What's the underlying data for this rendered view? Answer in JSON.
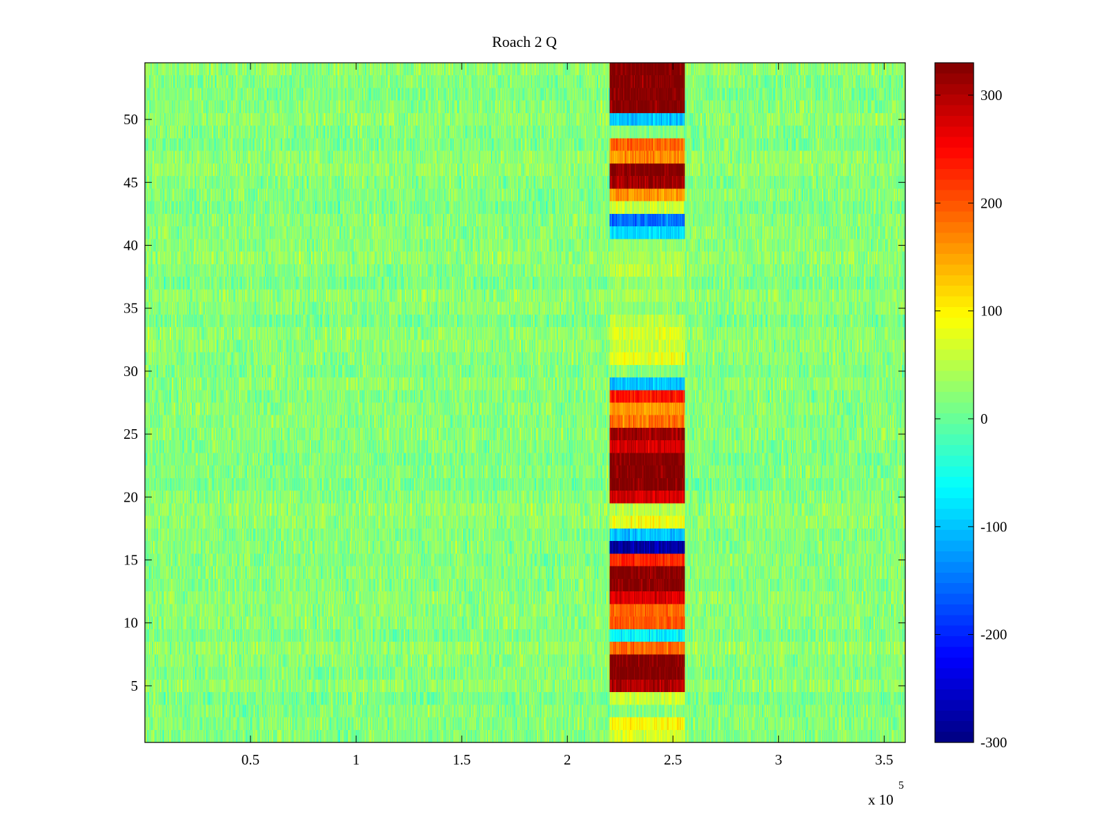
{
  "chart_data": {
    "type": "heatmap",
    "title": "Roach 2 Q",
    "xlabel": "",
    "ylabel": "",
    "x_exponent_label": "x 10",
    "x_exponent": "5",
    "xlim": [
      0,
      3.6
    ],
    "ylim": [
      0.5,
      54.5
    ],
    "x_ticks": [
      0.5,
      1,
      1.5,
      2,
      2.5,
      3,
      3.5
    ],
    "x_tick_labels": [
      "0.5",
      "1",
      "1.5",
      "2",
      "2.5",
      "3",
      "3.5"
    ],
    "y_ticks": [
      5,
      10,
      15,
      20,
      25,
      30,
      35,
      40,
      45,
      50
    ],
    "y_tick_labels": [
      "5",
      "10",
      "15",
      "20",
      "25",
      "30",
      "35",
      "40",
      "45",
      "50"
    ],
    "rows": 54,
    "colormap": "jet",
    "clim": [
      -300,
      330
    ],
    "colorbar_ticks": [
      -300,
      -200,
      -100,
      0,
      100,
      200,
      300
    ],
    "colorbar_tick_labels": [
      "-300",
      "-200",
      "-100",
      "0",
      "100",
      "200",
      "300"
    ],
    "background_level": 20,
    "background_noise": 30,
    "artifact_x": 0.915,
    "band": {
      "x_start": 2.2,
      "x_end": 2.555,
      "row_values": [
        {
          "row": 1,
          "value": 70
        },
        {
          "row": 2,
          "value": 95
        },
        {
          "row": 3,
          "value": 20
        },
        {
          "row": 4,
          "value": 60
        },
        {
          "row": 5,
          "value": 300
        },
        {
          "row": 6,
          "value": 330
        },
        {
          "row": 7,
          "value": 330
        },
        {
          "row": 8,
          "value": 190
        },
        {
          "row": 9,
          "value": -70
        },
        {
          "row": 10,
          "value": 200
        },
        {
          "row": 11,
          "value": 190
        },
        {
          "row": 12,
          "value": 270
        },
        {
          "row": 13,
          "value": 330
        },
        {
          "row": 14,
          "value": 330
        },
        {
          "row": 15,
          "value": 230
        },
        {
          "row": 16,
          "value": -280
        },
        {
          "row": 17,
          "value": -100
        },
        {
          "row": 18,
          "value": 90
        },
        {
          "row": 19,
          "value": 50
        },
        {
          "row": 20,
          "value": 280
        },
        {
          "row": 21,
          "value": 330
        },
        {
          "row": 22,
          "value": 330
        },
        {
          "row": 23,
          "value": 330
        },
        {
          "row": 24,
          "value": 280
        },
        {
          "row": 25,
          "value": 310
        },
        {
          "row": 26,
          "value": 180
        },
        {
          "row": 27,
          "value": 160
        },
        {
          "row": 28,
          "value": 240
        },
        {
          "row": 29,
          "value": -100
        },
        {
          "row": 30,
          "value": 20
        },
        {
          "row": 31,
          "value": 80
        },
        {
          "row": 32,
          "value": 60
        },
        {
          "row": 33,
          "value": 70
        },
        {
          "row": 34,
          "value": 50
        },
        {
          "row": 35,
          "value": 20
        },
        {
          "row": 36,
          "value": 40
        },
        {
          "row": 37,
          "value": 30
        },
        {
          "row": 38,
          "value": 50
        },
        {
          "row": 39,
          "value": 40
        },
        {
          "row": 40,
          "value": 30
        },
        {
          "row": 41,
          "value": -90
        },
        {
          "row": 42,
          "value": -150
        },
        {
          "row": 43,
          "value": 60
        },
        {
          "row": 44,
          "value": 160
        },
        {
          "row": 45,
          "value": 310
        },
        {
          "row": 46,
          "value": 330
        },
        {
          "row": 47,
          "value": 170
        },
        {
          "row": 48,
          "value": 190
        },
        {
          "row": 49,
          "value": 20
        },
        {
          "row": 50,
          "value": -100
        },
        {
          "row": 51,
          "value": 330
        },
        {
          "row": 52,
          "value": 330
        },
        {
          "row": 53,
          "value": 330
        },
        {
          "row": 54,
          "value": 330
        }
      ]
    }
  }
}
